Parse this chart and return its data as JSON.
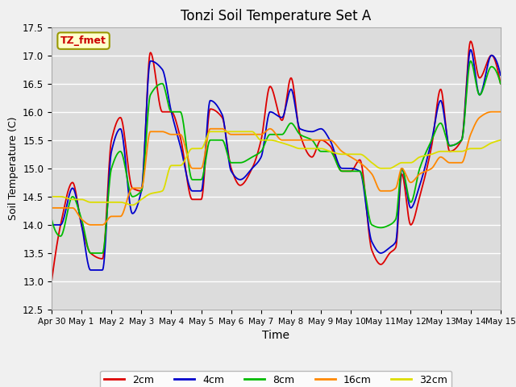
{
  "title": "Tonzi Soil Temperature Set A",
  "xlabel": "Time",
  "ylabel": "Soil Temperature (C)",
  "ylim": [
    12.5,
    17.5
  ],
  "bg_color": "#dcdcdc",
  "legend_label": "TZ_fmet",
  "series_colors": {
    "2cm": "#dd0000",
    "4cm": "#0000cc",
    "8cm": "#00bb00",
    "16cm": "#ff8800",
    "32cm": "#dddd00"
  },
  "xtick_labels": [
    "Apr 30",
    "May 1",
    "May 2",
    "May 3",
    "May 4",
    "May 5",
    "May 6",
    "May 7",
    "May 8",
    "May 9",
    "May 10",
    "May 11",
    "May 12",
    "May 13",
    "May 14",
    "May 15"
  ],
  "ytick_values": [
    12.5,
    13.0,
    13.5,
    14.0,
    14.5,
    15.0,
    15.5,
    16.0,
    16.5,
    17.0,
    17.5
  ]
}
